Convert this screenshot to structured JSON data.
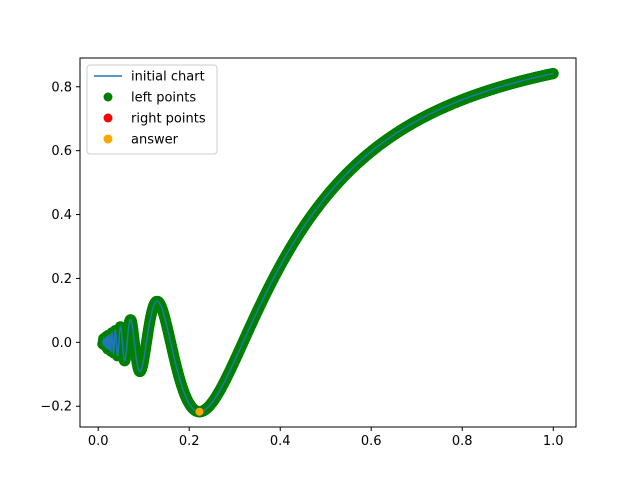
{
  "chart_data": {
    "type": "line",
    "function": "y = x * sin(1/x)",
    "x_range": [
      0.01,
      1.0
    ],
    "xlim": [
      -0.04,
      1.05
    ],
    "ylim": [
      -0.265,
      0.89
    ],
    "x_ticks": [
      {
        "value": 0.0,
        "label": "0.0"
      },
      {
        "value": 0.2,
        "label": "0.2"
      },
      {
        "value": 0.4,
        "label": "0.4"
      },
      {
        "value": 0.6,
        "label": "0.6"
      },
      {
        "value": 0.8,
        "label": "0.8"
      },
      {
        "value": 1.0,
        "label": "1.0"
      }
    ],
    "y_ticks": [
      {
        "value": -0.2,
        "label": "−0.2"
      },
      {
        "value": 0.0,
        "label": "0.0"
      },
      {
        "value": 0.2,
        "label": "0.2"
      },
      {
        "value": 0.4,
        "label": "0.4"
      },
      {
        "value": 0.6,
        "label": "0.6"
      },
      {
        "value": 0.8,
        "label": "0.8"
      }
    ],
    "series": [
      {
        "name": "initial chart",
        "kind": "line",
        "color": "#1f77b4"
      },
      {
        "name": "left points",
        "kind": "scatter",
        "color": "#008000"
      },
      {
        "name": "right points",
        "kind": "scatter",
        "color": "#ff0000"
      },
      {
        "name": "answer",
        "kind": "scatter",
        "color": "#ffa500",
        "points": [
          {
            "x": 0.2225,
            "y": -0.2172
          }
        ]
      }
    ],
    "grid": false,
    "legend_position": "upper-left"
  }
}
